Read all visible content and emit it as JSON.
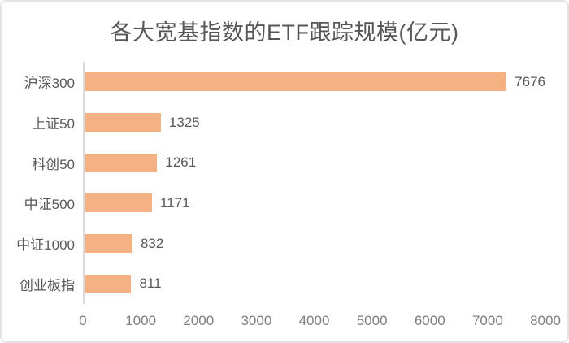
{
  "title": "各大宽基指数的ETF跟踪规模(亿元)",
  "chart_data": {
    "type": "bar",
    "orientation": "horizontal",
    "title": "各大宽基指数的ETF跟踪规模(亿元)",
    "categories": [
      "沪深300",
      "上证50",
      "科创50",
      "中证500",
      "中证1000",
      "创业板指"
    ],
    "values": [
      7676,
      1325,
      1261,
      1171,
      832,
      811
    ],
    "value_labels": [
      "7676",
      "1325",
      "1261",
      "1171",
      "832",
      "811"
    ],
    "xlabel": "",
    "ylabel": "",
    "xlim": [
      0,
      8000
    ],
    "x_ticks": [
      "0",
      "1000",
      "2000",
      "3000",
      "4000",
      "5000",
      "6000",
      "7000",
      "8000"
    ],
    "grid": false,
    "legend": null,
    "data_labels": true,
    "colors": {
      "bar": "#F4B183",
      "axis_line": "#d9d9d9",
      "title_text": "#565656",
      "category_text": "#595959",
      "value_text": "#595959",
      "tick_text": "#7f7f7f",
      "frame_border": "#e3e3e3",
      "background": "#ffffff"
    }
  }
}
